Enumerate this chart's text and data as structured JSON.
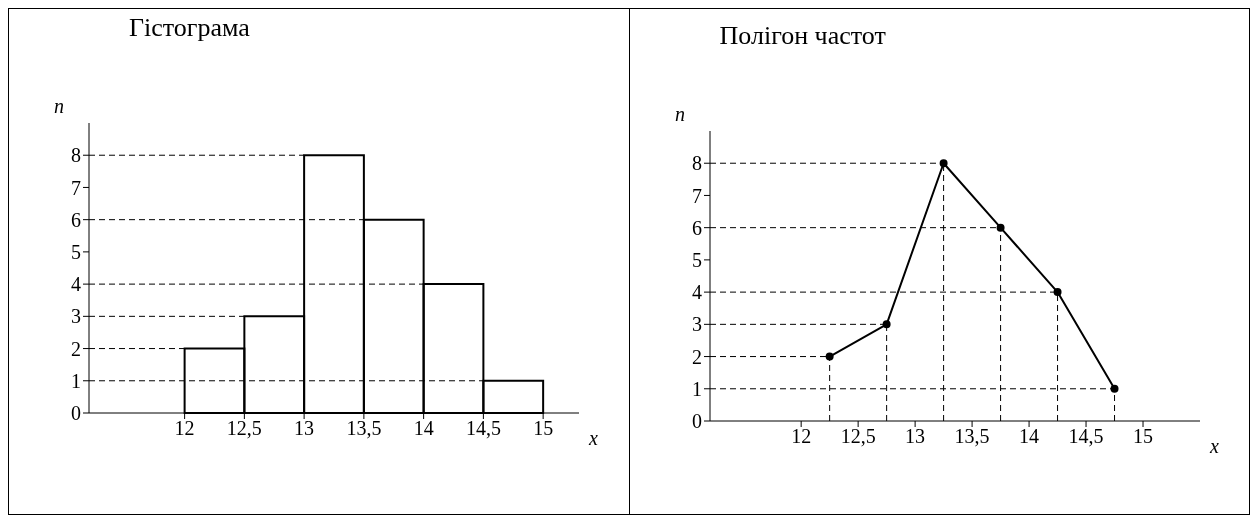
{
  "chart_data": [
    {
      "type": "histogram",
      "title": "Гістограма",
      "xlabel": "x",
      "ylabel": "n",
      "bins": [
        12,
        12.5,
        13,
        13.5,
        14,
        14.5,
        15
      ],
      "values": [
        2,
        3,
        8,
        6,
        4,
        1
      ],
      "color": "#000000",
      "xlim": [
        11.2,
        15.3
      ],
      "ylim": [
        0,
        9
      ],
      "xticks": [
        12,
        {
          "value": 12.5,
          "label": "12,5"
        },
        13,
        {
          "value": 13.5,
          "label": "13,5"
        },
        14,
        {
          "value": 14.5,
          "label": "14,5"
        },
        15
      ],
      "yticks": [
        0,
        1,
        2,
        3,
        4,
        5,
        6,
        7,
        8
      ],
      "ref_lines": [
        {
          "axis": "y",
          "value": 2,
          "line_style": "dashed"
        },
        {
          "axis": "y",
          "value": 3,
          "line_style": "dashed"
        },
        {
          "axis": "y",
          "value": 8,
          "line_style": "dashed"
        },
        {
          "axis": "y",
          "value": 6,
          "line_style": "dashed"
        },
        {
          "axis": "y",
          "value": 4,
          "line_style": "dashed"
        },
        {
          "axis": "y",
          "value": 1,
          "line_style": "dashed"
        }
      ]
    },
    {
      "type": "line",
      "title": "Полігон частот",
      "xlabel": "x",
      "ylabel": "n",
      "x": [
        12.25,
        12.75,
        13.25,
        13.75,
        14.25,
        14.75
      ],
      "values": [
        2,
        3,
        8,
        6,
        4,
        1
      ],
      "color": "#000000",
      "marker": "circle",
      "xlim": [
        11.2,
        15.5
      ],
      "ylim": [
        0,
        9
      ],
      "xticks": [
        12,
        {
          "value": 12.5,
          "label": "12,5"
        },
        13,
        {
          "value": 13.5,
          "label": "13,5"
        },
        14,
        {
          "value": 14.5,
          "label": "14,5"
        },
        15
      ],
      "yticks": [
        0,
        1,
        2,
        3,
        4,
        5,
        6,
        7,
        8
      ],
      "ref_lines": [
        {
          "axis": "y",
          "value": 2,
          "line_style": "dashed"
        },
        {
          "axis": "y",
          "value": 3,
          "line_style": "dashed"
        },
        {
          "axis": "y",
          "value": 8,
          "line_style": "dashed"
        },
        {
          "axis": "y",
          "value": 6,
          "line_style": "dashed"
        },
        {
          "axis": "y",
          "value": 4,
          "line_style": "dashed"
        },
        {
          "axis": "y",
          "value": 1,
          "line_style": "dashed"
        },
        {
          "axis": "x",
          "value": 12.25,
          "line_style": "dashed"
        },
        {
          "axis": "x",
          "value": 12.75,
          "line_style": "dashed"
        },
        {
          "axis": "x",
          "value": 13.25,
          "line_style": "dashed"
        },
        {
          "axis": "x",
          "value": 13.75,
          "line_style": "dashed"
        },
        {
          "axis": "x",
          "value": 14.25,
          "line_style": "dashed"
        },
        {
          "axis": "x",
          "value": 14.75,
          "line_style": "dashed"
        }
      ]
    }
  ]
}
